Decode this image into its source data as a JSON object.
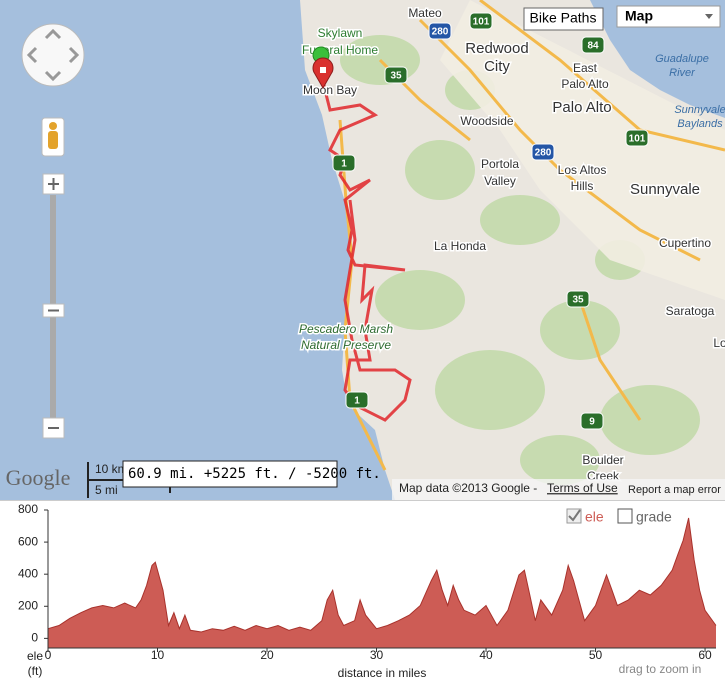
{
  "map": {
    "labels": [
      "Mateo",
      "Skylawn",
      "Funeral Home",
      "Redwood",
      "City",
      "East",
      "Palo Alto",
      "Guadalupe",
      "River",
      "Moon Bay",
      "Palo Alto",
      "Woodside",
      "Sunnyvale",
      "Baylands",
      "Portola",
      "Valley",
      "Los Altos",
      "Hills",
      "Sunnyvale",
      "La Honda",
      "Cupertino",
      "Saratoga",
      "Pescadero Marsh",
      "Natural Preserve",
      "Lo",
      "Boulder",
      "Creek"
    ],
    "shields": [
      "101",
      "280",
      "84",
      "35",
      "280",
      "101",
      "1",
      "35",
      "1",
      "9"
    ],
    "buttons": {
      "layer": "Bike Paths",
      "map_type": "Map"
    },
    "logo": "Google",
    "scale": {
      "km": "10 km",
      "mi": "5 mi"
    },
    "route_summary": "60.9 mi. +5225 ft. / -5200 ft.",
    "attribution": "Map data ©2013 Google -",
    "terms": "Terms of Use",
    "report": "Report a map error"
  },
  "chart_data": {
    "type": "area",
    "x": [
      0,
      1,
      2,
      3,
      4,
      5,
      6,
      7,
      8,
      8.5,
      9,
      9.5,
      9.8,
      10.5,
      11,
      11.5,
      12,
      12.5,
      13,
      14,
      15,
      16,
      17,
      18,
      19,
      20,
      21,
      22,
      23,
      24,
      25,
      25.5,
      26,
      26.5,
      27,
      28,
      28.5,
      29,
      30,
      31,
      32,
      33,
      34,
      35,
      35.5,
      36,
      36.5,
      37,
      37.5,
      38,
      39,
      40,
      41,
      42,
      43,
      43.5,
      44,
      44.5,
      45,
      46,
      47,
      47.5,
      48,
      49,
      50,
      51,
      51.5,
      52,
      53,
      54,
      55,
      56,
      57,
      57.5,
      58,
      58.5,
      59,
      59.5,
      60,
      61
    ],
    "series": [
      {
        "name": "ele",
        "color": "#cd5c55",
        "checked": true,
        "values": [
          60,
          80,
          125,
          160,
          190,
          205,
          190,
          220,
          190,
          240,
          330,
          455,
          475,
          300,
          80,
          160,
          60,
          145,
          50,
          40,
          60,
          50,
          75,
          50,
          80,
          60,
          80,
          50,
          70,
          50,
          110,
          240,
          300,
          145,
          80,
          110,
          240,
          145,
          60,
          80,
          110,
          145,
          205,
          360,
          425,
          300,
          205,
          330,
          240,
          175,
          145,
          205,
          80,
          175,
          395,
          425,
          270,
          110,
          240,
          145,
          300,
          455,
          360,
          110,
          205,
          395,
          300,
          205,
          240,
          300,
          270,
          330,
          425,
          520,
          610,
          750,
          490,
          300,
          175,
          80
        ]
      }
    ],
    "options": [
      {
        "label": "grade",
        "checked": false
      }
    ],
    "xlim": [
      0,
      61
    ],
    "ylim": [
      -60,
      800
    ],
    "xticks": [
      0,
      10,
      20,
      30,
      40,
      50,
      60
    ],
    "yticks": [
      0,
      200,
      400,
      600,
      800
    ],
    "ylabel": "ele",
    "ylabel_unit": "(ft)",
    "xlabel": "distance in miles",
    "hint": "drag to zoom in"
  }
}
